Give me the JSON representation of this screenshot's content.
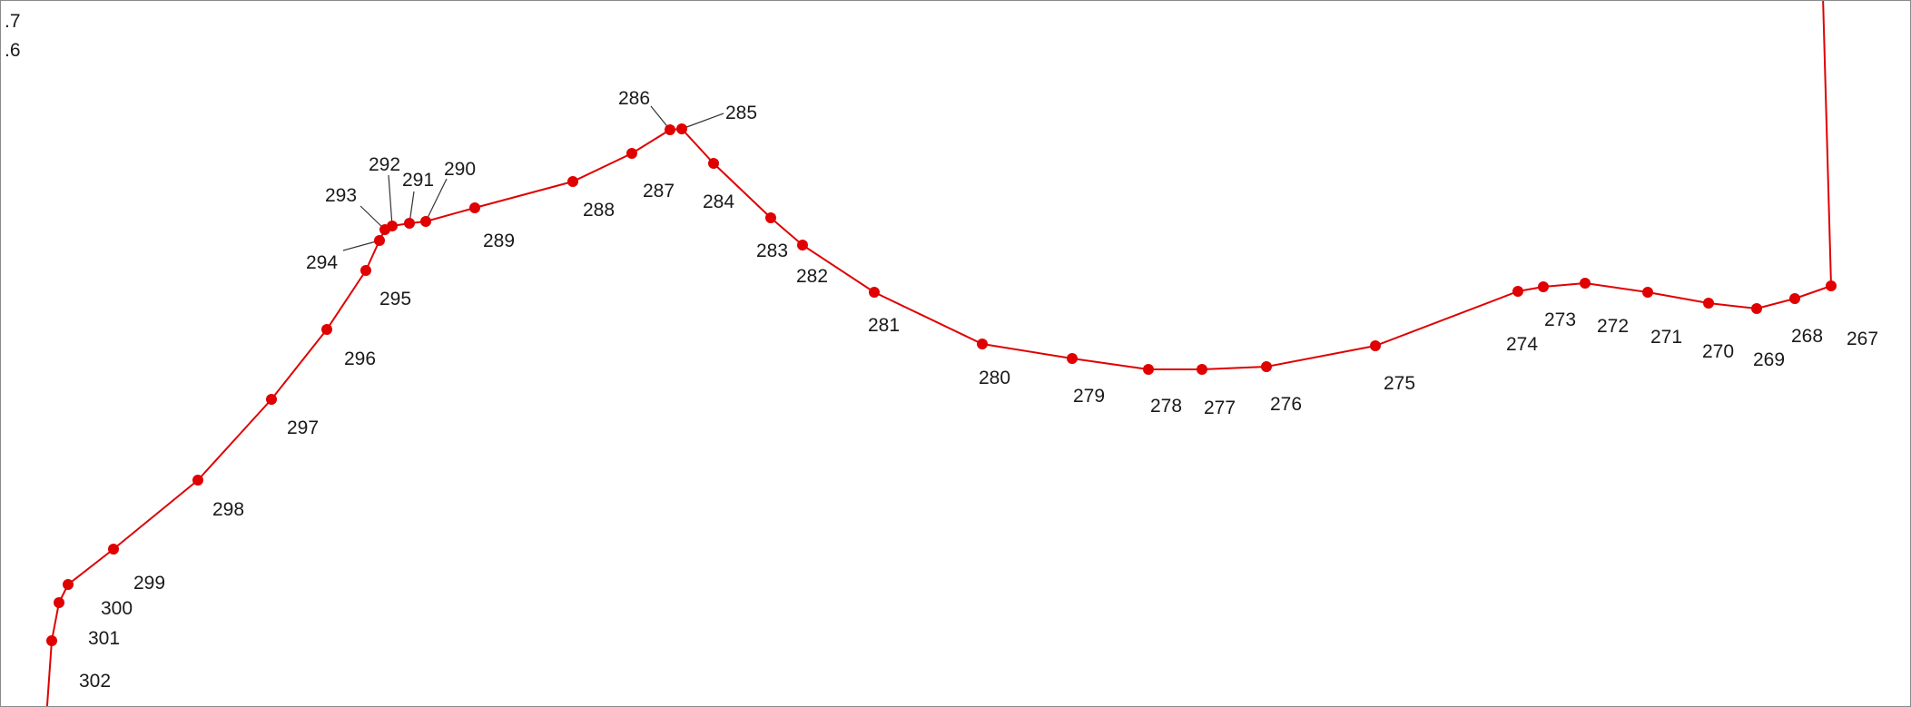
{
  "colors": {
    "route": "#e00000",
    "vertex": "#e00000",
    "leader": "#333333",
    "label": "#1a1a1a",
    "background": "#ffffff"
  },
  "edge_labels": [
    ".7",
    ".6"
  ],
  "vertices": [
    {
      "id": "267",
      "label": "267"
    },
    {
      "id": "268",
      "label": "268"
    },
    {
      "id": "269",
      "label": "269"
    },
    {
      "id": "270",
      "label": "270"
    },
    {
      "id": "271",
      "label": "271"
    },
    {
      "id": "272",
      "label": "272"
    },
    {
      "id": "273",
      "label": "273"
    },
    {
      "id": "274",
      "label": "274"
    },
    {
      "id": "275",
      "label": "275"
    },
    {
      "id": "276",
      "label": "276"
    },
    {
      "id": "277",
      "label": "277"
    },
    {
      "id": "278",
      "label": "278"
    },
    {
      "id": "279",
      "label": "279"
    },
    {
      "id": "280",
      "label": "280"
    },
    {
      "id": "281",
      "label": "281"
    },
    {
      "id": "282",
      "label": "282"
    },
    {
      "id": "283",
      "label": "283"
    },
    {
      "id": "284",
      "label": "284"
    },
    {
      "id": "285",
      "label": "285"
    },
    {
      "id": "286",
      "label": "286"
    },
    {
      "id": "287",
      "label": "287"
    },
    {
      "id": "288",
      "label": "288"
    },
    {
      "id": "289",
      "label": "289"
    },
    {
      "id": "290",
      "label": "290"
    },
    {
      "id": "291",
      "label": "291"
    },
    {
      "id": "292",
      "label": "292"
    },
    {
      "id": "293",
      "label": "293"
    },
    {
      "id": "294",
      "label": "294"
    },
    {
      "id": "295",
      "label": "295"
    },
    {
      "id": "296",
      "label": "296"
    },
    {
      "id": "297",
      "label": "297"
    },
    {
      "id": "298",
      "label": "298"
    },
    {
      "id": "299",
      "label": "299"
    },
    {
      "id": "300",
      "label": "300"
    },
    {
      "id": "301",
      "label": "301"
    },
    {
      "id": "302",
      "label": "302"
    }
  ]
}
